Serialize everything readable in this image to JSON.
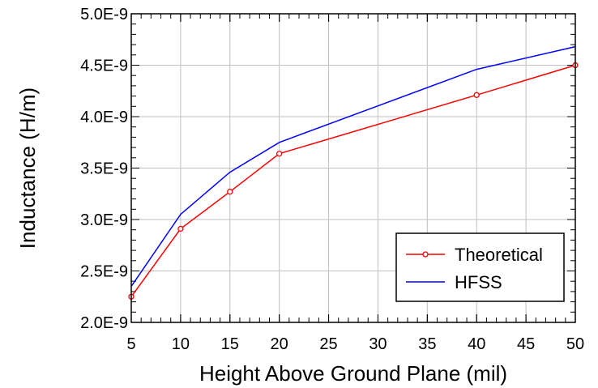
{
  "chart_data": {
    "type": "line",
    "title": "",
    "xlabel": "Height Above Ground Plane (mil)",
    "ylabel": "Inductance (H/m)",
    "xlim": [
      5,
      50
    ],
    "ylim": [
      2e-09,
      5e-09
    ],
    "x_ticks": [
      5,
      10,
      15,
      20,
      25,
      30,
      35,
      40,
      45,
      50
    ],
    "x_tick_labels": [
      "5",
      "10",
      "15",
      "20",
      "25",
      "30",
      "35",
      "40",
      "45",
      "50"
    ],
    "y_ticks": [
      2e-09,
      2.5e-09,
      3e-09,
      3.5e-09,
      4e-09,
      4.5e-09,
      5e-09
    ],
    "y_tick_labels": [
      "2.0E-9",
      "2.5E-9",
      "3.0E-9",
      "3.5E-9",
      "4.0E-9",
      "4.5E-9",
      "5.0E-9"
    ],
    "grid": true,
    "legend_position": "bottom-right",
    "series": [
      {
        "name": "Theoretical",
        "color": "#ff0000",
        "marker": "circle",
        "x": [
          5,
          10,
          15,
          20,
          40,
          50
        ],
        "y": [
          2.25e-09,
          2.91e-09,
          3.27e-09,
          3.64e-09,
          4.21e-09,
          4.5e-09
        ]
      },
      {
        "name": "HFSS",
        "color": "#0000ff",
        "marker": "none",
        "x": [
          5,
          10,
          15,
          20,
          40,
          50
        ],
        "y": [
          2.35e-09,
          3.05e-09,
          3.46e-09,
          3.75e-09,
          4.46e-09,
          4.68e-09
        ]
      }
    ]
  }
}
